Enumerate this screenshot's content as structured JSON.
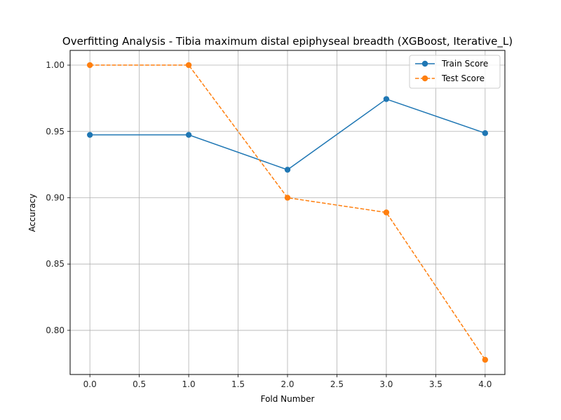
{
  "chart_data": {
    "type": "line",
    "title": "Overfitting Analysis - Tibia maximum distal epiphyseal breadth (XGBoost, Iterative_L)",
    "xlabel": "Fold Number",
    "ylabel": "Accuracy",
    "x": [
      0,
      1,
      2,
      3,
      4
    ],
    "xlim": [
      -0.2,
      4.2
    ],
    "ylim": [
      0.7667,
      1.0111
    ],
    "xticks": [
      0.0,
      0.5,
      1.0,
      1.5,
      2.0,
      2.5,
      3.0,
      3.5,
      4.0
    ],
    "xtick_labels": [
      "0.0",
      "0.5",
      "1.0",
      "1.5",
      "2.0",
      "2.5",
      "3.0",
      "3.5",
      "4.0"
    ],
    "yticks": [
      0.8,
      0.85,
      0.9,
      0.95,
      1.0
    ],
    "ytick_labels": [
      "0.80",
      "0.85",
      "0.90",
      "0.95",
      "1.00"
    ],
    "grid": true,
    "legend_position": "top-right",
    "series": [
      {
        "name": "Train Score",
        "values": [
          0.9474,
          0.9474,
          0.9211,
          0.9744,
          0.9487
        ],
        "color": "#1f77b4",
        "linestyle": "solid",
        "marker": "circle"
      },
      {
        "name": "Test Score",
        "values": [
          1.0,
          1.0,
          0.9,
          0.8889,
          0.7778
        ],
        "color": "#ff7f0e",
        "linestyle": "dashed",
        "marker": "circle"
      }
    ]
  }
}
